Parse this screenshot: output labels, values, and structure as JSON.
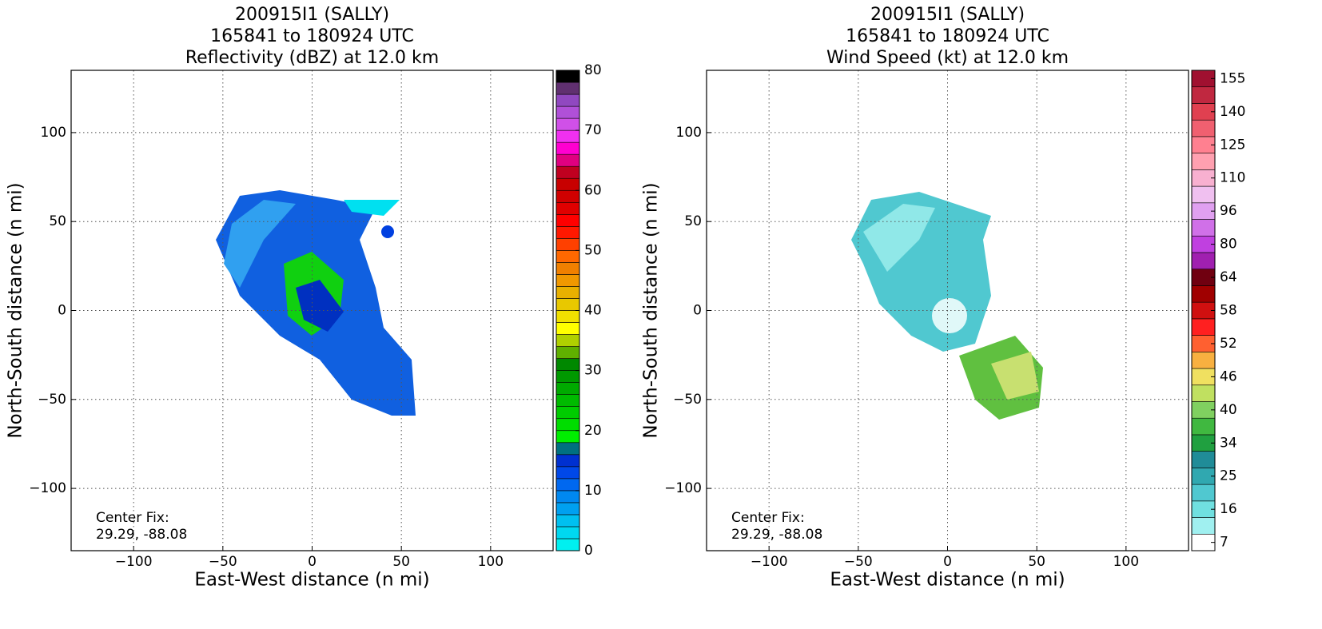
{
  "chart_data": [
    {
      "type": "heatmap",
      "title": [
        "200915I1 (SALLY)",
        "165841 to 180924 UTC",
        "Reflectivity (dBZ) at 12.0 km"
      ],
      "xlabel": "East-West distance (n mi)",
      "ylabel": "North-South distance (n mi)",
      "xlim": [
        -135,
        135
      ],
      "ylim": [
        -135,
        135
      ],
      "xticks": [
        {
          "value": -100,
          "label": "−100"
        },
        {
          "value": -50,
          "label": "−50"
        },
        0,
        50,
        100
      ],
      "yticks": [
        {
          "value": -100,
          "label": "−100"
        },
        {
          "value": -50,
          "label": "−50"
        },
        0,
        50,
        100
      ],
      "grid": true,
      "annotation": [
        "Center Fix:",
        "29.29, -88.08"
      ],
      "cbar_lim": [
        0,
        80
      ],
      "cbar_ticks": [
        0,
        10,
        20,
        30,
        40,
        50,
        60,
        70,
        80
      ],
      "cbar_colors": [
        "#00f0f0",
        "#00d8f0",
        "#00c0f0",
        "#00a0f0",
        "#0088f0",
        "#0068f0",
        "#0048e8",
        "#0030d0",
        "#007080",
        "#00ee00",
        "#00dd00",
        "#00cc00",
        "#00bb00",
        "#00aa00",
        "#009900",
        "#008800",
        "#60b000",
        "#b0d000",
        "#ffff00",
        "#f0e000",
        "#e8c800",
        "#e8b000",
        "#f09800",
        "#f08000",
        "#ff6800",
        "#ff4000",
        "#ff1800",
        "#ff0000",
        "#e00000",
        "#d00000",
        "#c80000",
        "#c00020",
        "#e00080",
        "#ff00d0",
        "#f030f0",
        "#d050e8",
        "#b050d8",
        "#9048c0",
        "#603070",
        "#000000"
      ]
    },
    {
      "type": "heatmap",
      "title": [
        "200915I1 (SALLY)",
        "165841 to 180924 UTC",
        "Wind Speed (kt) at 12.0 km"
      ],
      "xlabel": "East-West distance (n mi)",
      "ylabel": "North-South distance (n mi)",
      "xlim": [
        -135,
        135
      ],
      "ylim": [
        -135,
        135
      ],
      "xticks": [
        {
          "value": -100,
          "label": "−100"
        },
        {
          "value": -50,
          "label": "−50"
        },
        0,
        50,
        100
      ],
      "yticks": [
        {
          "value": -100,
          "label": "−100"
        },
        {
          "value": -50,
          "label": "−50"
        },
        0,
        50,
        100
      ],
      "grid": true,
      "annotation": [
        "Center Fix:",
        "29.29, -88.08"
      ],
      "cbar_ticks": [
        7,
        16,
        25,
        34,
        40,
        46,
        52,
        58,
        64,
        80,
        96,
        110,
        125,
        140,
        155
      ],
      "cbar_colors": [
        "#ffffff",
        "#a0f0f0",
        "#70e0e0",
        "#50c8d0",
        "#30a8b0",
        "#208c98",
        "#20a040",
        "#40b840",
        "#80d060",
        "#c0e060",
        "#f0e060",
        "#f8b040",
        "#ff6030",
        "#ff2020",
        "#d01010",
        "#a00000",
        "#700010",
        "#a020b0",
        "#c040e0",
        "#d070e8",
        "#e0a0f0",
        "#f0c0f0",
        "#f8b0d0",
        "#ffa0b0",
        "#ff8090",
        "#f06070",
        "#e04050",
        "#c02840",
        "#a01030"
      ]
    }
  ]
}
